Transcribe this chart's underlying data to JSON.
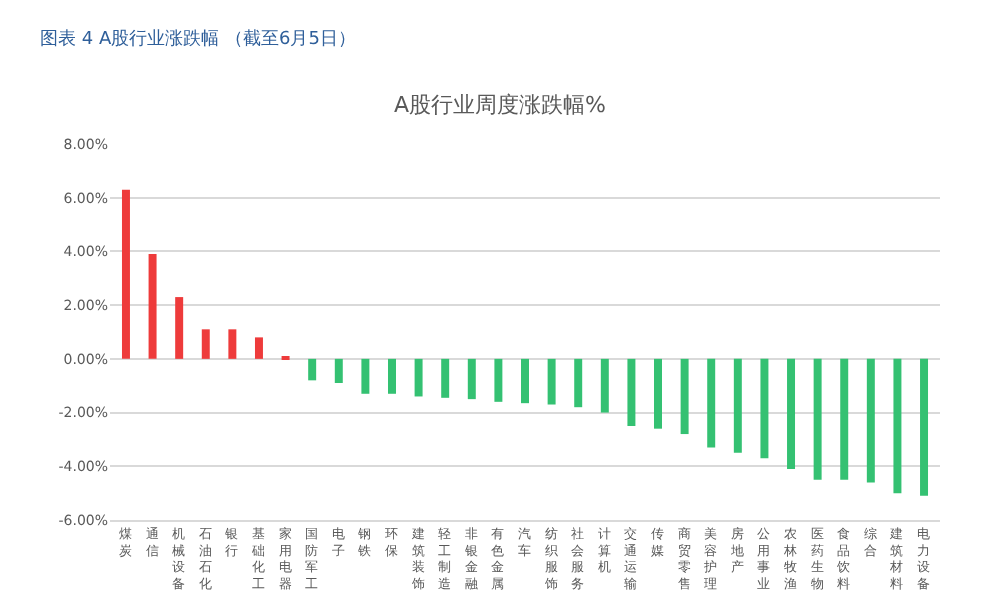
{
  "chart_data": {
    "type": "bar",
    "title": "A股行业周度涨跌幅%",
    "subtitle": "图表 4 A股行业涨跌幅 （截至6月5日）",
    "categories": [
      "煤炭",
      "通信",
      "机械设备",
      "石油石化",
      "银行",
      "基础化工",
      "家用电器",
      "国防军工",
      "电子",
      "钢铁",
      "环保",
      "建筑装饰",
      "轻工制造",
      "非银金融",
      "有色金属",
      "汽车",
      "纺织服饰",
      "社会服务",
      "计算机",
      "交通运输",
      "传媒",
      "商贸零售",
      "美容护理",
      "房地产",
      "公用事业",
      "农林牧渔",
      "医药生物",
      "食品饮料",
      "综合",
      "建筑材料",
      "电力设备"
    ],
    "values": [
      6.3,
      3.9,
      2.3,
      1.1,
      1.1,
      0.8,
      0.1,
      -0.8,
      -0.9,
      -1.3,
      -1.3,
      -1.4,
      -1.45,
      -1.5,
      -1.6,
      -1.65,
      -1.7,
      -1.8,
      -2.0,
      -2.5,
      -2.6,
      -2.8,
      -3.3,
      -3.5,
      -3.7,
      -4.1,
      -4.5,
      -4.5,
      -4.6,
      -5.0,
      -5.1
    ],
    "colors": [
      "#ee3b3b",
      "#ee3b3b",
      "#ee3b3b",
      "#ee3b3b",
      "#ee3b3b",
      "#ee3b3b",
      "#ee3b3b",
      "#34c172",
      "#34c172",
      "#34c172",
      "#34c172",
      "#34c172",
      "#34c172",
      "#34c172",
      "#34c172",
      "#34c172",
      "#34c172",
      "#34c172",
      "#34c172",
      "#34c172",
      "#34c172",
      "#34c172",
      "#34c172",
      "#34c172",
      "#34c172",
      "#34c172",
      "#34c172",
      "#34c172",
      "#34c172",
      "#34c172",
      "#34c172"
    ],
    "ylim": [
      -6,
      8
    ],
    "yticks": [
      {
        "value": 8,
        "label": "8.00%"
      },
      {
        "value": 6,
        "label": "6.00%"
      },
      {
        "value": 4,
        "label": "4.00%"
      },
      {
        "value": 2,
        "label": "2.00%"
      },
      {
        "value": 0,
        "label": "0.00%"
      },
      {
        "value": -2,
        "label": "-2.00%"
      },
      {
        "value": -4,
        "label": "-4.00%"
      },
      {
        "value": -6,
        "label": "-6.00%"
      }
    ],
    "grid": "y"
  }
}
